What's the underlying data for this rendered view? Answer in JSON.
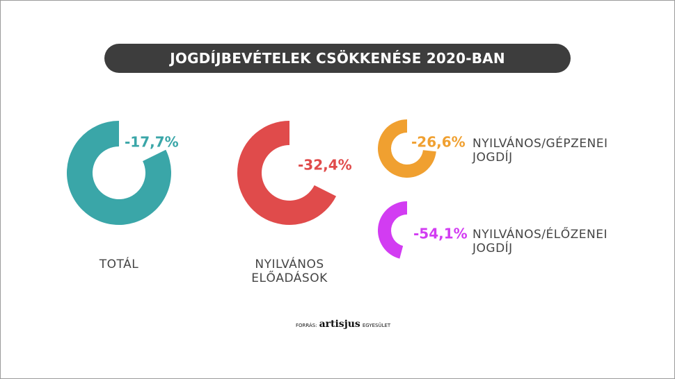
{
  "title": "JOGDÍJBEVÉTELEK CSÖKKENÉSE 2020-BAN",
  "source": {
    "prefix": "FORRÁS:",
    "logo": "artisjus",
    "suffix": "EGYESÜLET"
  },
  "chart_data": {
    "type": "pie",
    "title": "JOGDÍJBEVÉTELEK CSÖKKENÉSE 2020-BAN",
    "series": [
      {
        "name": "TOTÁL",
        "caption_lines": [
          "TOTÁL"
        ],
        "value": -17.7,
        "label": "-17,7%",
        "color": "#3aa6a8"
      },
      {
        "name": "NYILVÁNOS ELŐADÁSOK",
        "caption_lines": [
          "NYILVÁNOS",
          "ELŐADÁSOK"
        ],
        "value": -32.4,
        "label": "-32,4%",
        "color": "#e04b4b"
      },
      {
        "name": "NYILVÁNOS/GÉPZENEI JOGDÍJ",
        "caption_lines": [
          "NYILVÁNOS/GÉPZENEI",
          "JOGDÍJ"
        ],
        "value": -26.6,
        "label": "-26,6%",
        "color": "#f0a030"
      },
      {
        "name": "NYILVÁNOS/ÉLŐZENEI JOGDÍJ",
        "caption_lines": [
          "NYILVÁNOS/ÉLŐZENEI",
          "JOGDÍJ"
        ],
        "value": -54.1,
        "label": "-54,1%",
        "color": "#d23cf2"
      }
    ]
  }
}
